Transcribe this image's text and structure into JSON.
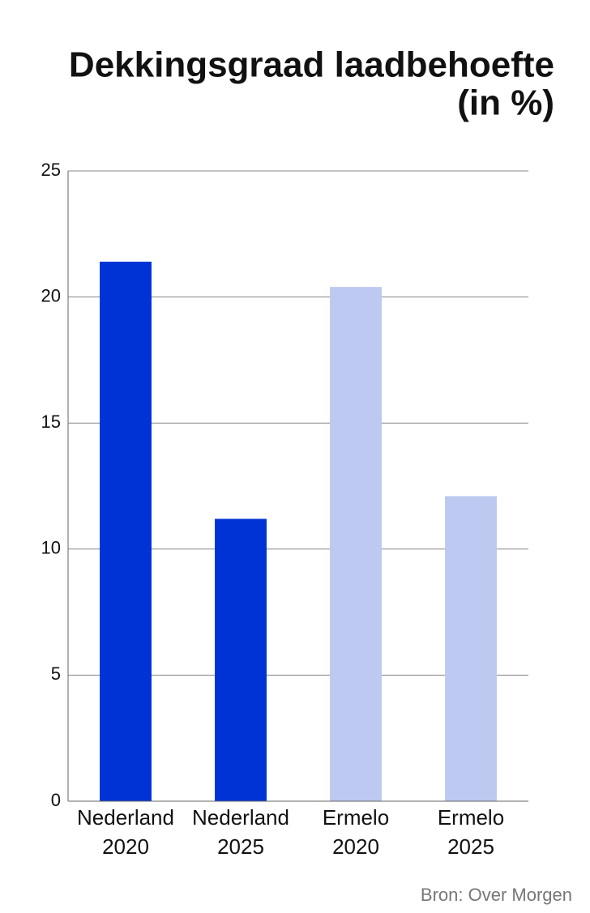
{
  "chart_data": {
    "type": "bar",
    "title": [
      "Dekkingsgraad laadbehoefte",
      "(in %)"
    ],
    "categories": [
      [
        "Nederland",
        "2020"
      ],
      [
        "Nederland",
        "2025"
      ],
      [
        "Ermelo",
        "2020"
      ],
      [
        "Ermelo",
        "2025"
      ]
    ],
    "values": [
      21.4,
      11.2,
      20.4,
      12.1
    ],
    "colors": [
      "#0033d6",
      "#0033d6",
      "#bdc9f0",
      "#bdc9f0"
    ],
    "ylim": [
      0,
      25
    ],
    "yticks": [
      0,
      5,
      10,
      15,
      20,
      25
    ],
    "grid": true,
    "source": "Bron: Over Morgen"
  }
}
